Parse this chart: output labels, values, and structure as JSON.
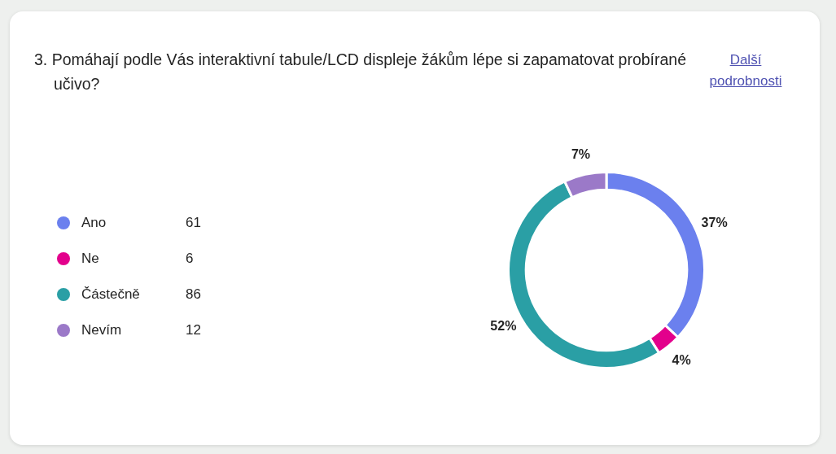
{
  "chart_data": {
    "type": "donut",
    "title": "3. Pomáhají podle Vás interaktivní tabule/LCD displeje žákům lépe si zapamatovat probírané učivo?",
    "categories": [
      "Ano",
      "Ne",
      "Částečně",
      "Nevím"
    ],
    "values": [
      37,
      4,
      52,
      7
    ],
    "colors": [
      "#6b80ee",
      "#e3008c",
      "#2a9fa5",
      "#9b79c8"
    ],
    "value_labels": [
      "37%",
      "4%",
      "52%",
      "7%"
    ],
    "legend": "left",
    "annotations": [
      "Další podrobnosti",
      {
        "text": "61",
        "x": "Ano"
      },
      {
        "text": "6",
        "x": "Ne"
      },
      {
        "text": "86",
        "x": "Částečně"
      },
      {
        "text": "12",
        "x": "Nevím"
      }
    ]
  }
}
